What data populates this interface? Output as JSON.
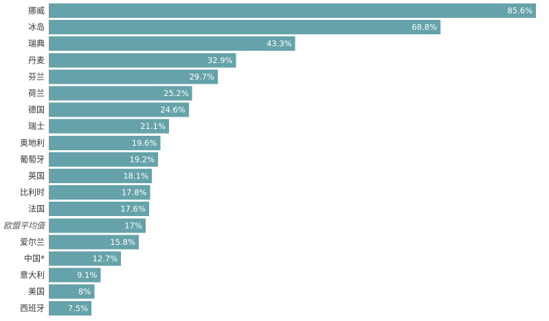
{
  "chart_data": {
    "type": "bar",
    "orientation": "horizontal",
    "title": "",
    "xlabel": "",
    "ylabel": "",
    "bar_color": "#65a2a9",
    "value_label_color": "#ffffff",
    "xlim": [
      0,
      85.6
    ],
    "grid": false,
    "legend": "none",
    "categories": [
      "挪威",
      "冰岛",
      "瑞典",
      "丹麦",
      "芬兰",
      "荷兰",
      "德国",
      "瑞士",
      "奥地利",
      "葡萄牙",
      "英国",
      "比利时",
      "法国",
      "欧盟平均值",
      "爱尔兰",
      "中国*",
      "意大利",
      "美国",
      "西班牙"
    ],
    "values": [
      85.6,
      68.8,
      43.3,
      32.9,
      29.7,
      25.2,
      24.6,
      21.1,
      19.6,
      19.2,
      18.1,
      17.8,
      17.6,
      17,
      15.8,
      12.7,
      9.1,
      8,
      7.5
    ],
    "value_labels": [
      "85.6%",
      "68.8%",
      "43.3%",
      "32.9%",
      "29.7%",
      "25.2%",
      "24.6%",
      "21.1%",
      "19.6%",
      "19.2%",
      "18.1%",
      "17.8%",
      "17.6%",
      "17%",
      "15.8%",
      "12.7%",
      "9.1%",
      "8%",
      "7.5%"
    ],
    "highlighted_category": "欧盟平均值"
  }
}
